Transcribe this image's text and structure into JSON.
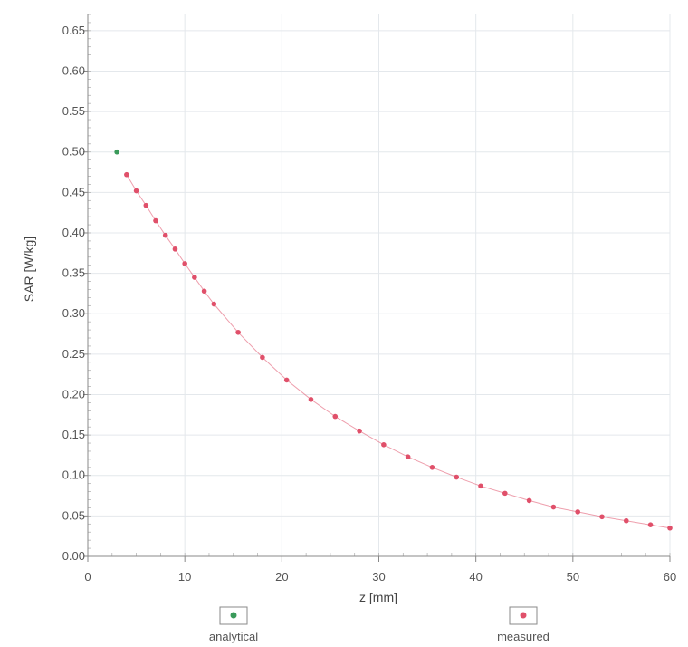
{
  "chart_data": {
    "type": "scatter",
    "xlabel": "z [mm]",
    "ylabel": "SAR [W/kg]",
    "xlim": [
      0,
      60
    ],
    "ylim": [
      0,
      0.67
    ],
    "x_ticks": [
      "0",
      "10",
      "20",
      "30",
      "40",
      "50",
      "60"
    ],
    "y_ticks": [
      "0.00",
      "0.05",
      "0.10",
      "0.15",
      "0.20",
      "0.25",
      "0.30",
      "0.35",
      "0.40",
      "0.45",
      "0.50",
      "0.55",
      "0.60",
      "0.65"
    ],
    "grid": true,
    "legend_position": "bottom",
    "series": [
      {
        "name": "analytical",
        "color": "#3a9a5a",
        "x": [
          3.0
        ],
        "y": [
          0.5
        ]
      },
      {
        "name": "measured",
        "color": "#e0506a",
        "x": [
          4.0,
          5.0,
          6.0,
          7.0,
          8.0,
          9.0,
          10.0,
          11.0,
          12.0,
          13.0,
          15.5,
          18.0,
          20.5,
          23.0,
          25.5,
          28.0,
          30.5,
          33.0,
          35.5,
          38.0,
          40.5,
          43.0,
          45.5,
          48.0,
          50.5,
          53.0,
          55.5,
          58.0,
          60.0
        ],
        "y": [
          0.472,
          0.452,
          0.434,
          0.415,
          0.397,
          0.38,
          0.362,
          0.345,
          0.328,
          0.312,
          0.277,
          0.246,
          0.218,
          0.194,
          0.173,
          0.155,
          0.138,
          0.123,
          0.11,
          0.098,
          0.087,
          0.078,
          0.069,
          0.061,
          0.055,
          0.049,
          0.044,
          0.039,
          0.035
        ]
      }
    ]
  }
}
